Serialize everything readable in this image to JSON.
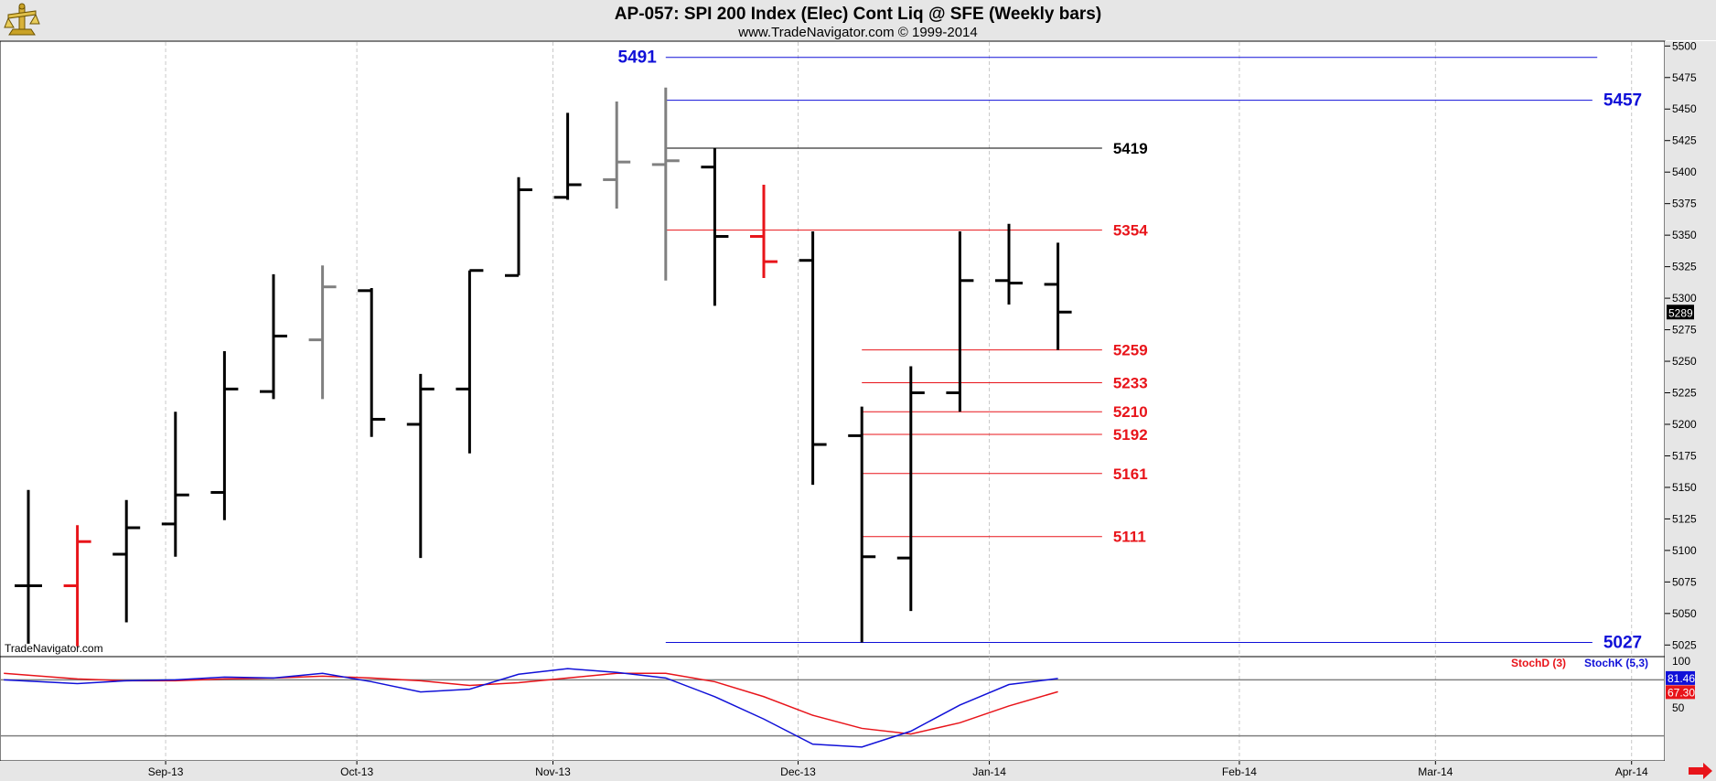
{
  "header": {
    "title": "AP-057:  SPI 200 Index (Elec) Cont Liq @ SFE  (Weekly bars)",
    "subtitle": "www.TradeNavigator.com © 1999-2014",
    "watermark": "TradeNavigator.com",
    "logo_icon": "trade-navigator-logo-icon"
  },
  "colors": {
    "black": "#000000",
    "red": "#e8141a",
    "gray": "#808080",
    "blue": "#1010d8",
    "grid": "#c8c8c8",
    "last_price_bg": "#000000",
    "stoch_d_bg": "#e8141a",
    "stoch_k_bg": "#1010d8"
  },
  "chart_data": {
    "type": "ohlc",
    "y_ticks": [
      5025,
      5050,
      5075,
      5100,
      5125,
      5150,
      5175,
      5200,
      5225,
      5250,
      5275,
      5300,
      5325,
      5350,
      5375,
      5400,
      5425,
      5450,
      5475,
      5500
    ],
    "y_tick_labels": [
      "5025",
      "5050",
      "5075",
      "5100",
      "5125",
      "5150",
      "5175",
      "5200",
      "5225",
      "5250",
      "5275",
      "5300",
      "5325",
      "5350",
      "5375",
      "5400",
      "5425",
      "5450",
      "5475",
      "5500"
    ],
    "ylim": [
      5022,
      5505
    ],
    "last_price": "5289",
    "last_price_value": 5289,
    "x_labels": [
      {
        "label": "Sep-13",
        "week": 2.8
      },
      {
        "label": "Oct-13",
        "week": 6.7
      },
      {
        "label": "Nov-13",
        "week": 10.7
      },
      {
        "label": "Dec-13",
        "week": 15.7
      },
      {
        "label": "Jan-14",
        "week": 19.6
      },
      {
        "label": "Feb-14",
        "week": 24.7
      },
      {
        "label": "Mar-14",
        "week": 28.7
      },
      {
        "label": "Apr-14",
        "week": 32.7
      }
    ],
    "bars": [
      {
        "week": 0,
        "open": 5072,
        "high": 5148,
        "low": 5026,
        "close": 5072,
        "color": "black"
      },
      {
        "week": 1,
        "open": 5072,
        "high": 5120,
        "low": 5024,
        "close": 5107,
        "color": "red"
      },
      {
        "week": 2,
        "open": 5097,
        "high": 5140,
        "low": 5043,
        "close": 5118,
        "color": "black"
      },
      {
        "week": 3,
        "open": 5121,
        "high": 5210,
        "low": 5095,
        "close": 5144,
        "color": "black"
      },
      {
        "week": 4,
        "open": 5146,
        "high": 5258,
        "low": 5124,
        "close": 5228,
        "color": "black"
      },
      {
        "week": 5,
        "open": 5226,
        "high": 5319,
        "low": 5220,
        "close": 5270,
        "color": "black"
      },
      {
        "week": 6,
        "open": 5267,
        "high": 5326,
        "low": 5220,
        "close": 5309,
        "color": "gray"
      },
      {
        "week": 7,
        "open": 5306,
        "high": 5308,
        "low": 5190,
        "close": 5204,
        "color": "black"
      },
      {
        "week": 8,
        "open": 5200,
        "high": 5240,
        "low": 5094,
        "close": 5228,
        "color": "black"
      },
      {
        "week": 9,
        "open": 5228,
        "high": 5322,
        "low": 5177,
        "close": 5322,
        "color": "black"
      },
      {
        "week": 10,
        "open": 5318,
        "high": 5396,
        "low": 5318,
        "close": 5386,
        "color": "black"
      },
      {
        "week": 11,
        "open": 5380,
        "high": 5447,
        "low": 5378,
        "close": 5390,
        "color": "black"
      },
      {
        "week": 12,
        "open": 5394,
        "high": 5456,
        "low": 5371,
        "close": 5408,
        "color": "gray"
      },
      {
        "week": 13,
        "open": 5406,
        "high": 5467,
        "low": 5314,
        "close": 5409,
        "color": "gray"
      },
      {
        "week": 14,
        "open": 5404,
        "high": 5419,
        "low": 5294,
        "close": 5349,
        "color": "black"
      },
      {
        "week": 15,
        "open": 5349,
        "high": 5390,
        "low": 5316,
        "close": 5329,
        "color": "red"
      },
      {
        "week": 16,
        "open": 5330,
        "high": 5353,
        "low": 5152,
        "close": 5184,
        "color": "black"
      },
      {
        "week": 17,
        "open": 5191,
        "high": 5214,
        "low": 5027,
        "close": 5095,
        "color": "black"
      },
      {
        "week": 18,
        "open": 5094,
        "high": 5246,
        "low": 5052,
        "close": 5225,
        "color": "black"
      },
      {
        "week": 19,
        "open": 5225,
        "high": 5353,
        "low": 5210,
        "close": 5314,
        "color": "black"
      },
      {
        "week": 20,
        "open": 5314,
        "high": 5359,
        "low": 5295,
        "close": 5312,
        "color": "black"
      },
      {
        "week": 21,
        "open": 5311,
        "high": 5344,
        "low": 5259,
        "close": 5289,
        "color": "black"
      }
    ],
    "levels": [
      {
        "value": 5491,
        "label": "5491",
        "color": "blue",
        "x_start": 13.0,
        "x_end": 32.0,
        "label_side": "left",
        "big": true
      },
      {
        "value": 5457,
        "label": "5457",
        "color": "blue",
        "x_start": 13.0,
        "x_end": 31.9,
        "label_side": "right",
        "big": true
      },
      {
        "value": 5419,
        "label": "5419",
        "color": "black",
        "x_start": 13.0,
        "x_end": 21.9,
        "label_side": "right",
        "big": false
      },
      {
        "value": 5354,
        "label": "5354",
        "color": "red",
        "x_start": 13.0,
        "x_end": 21.9,
        "label_side": "right",
        "big": false
      },
      {
        "value": 5259,
        "label": "5259",
        "color": "red",
        "x_start": 17.0,
        "x_end": 21.9,
        "label_side": "right",
        "big": false
      },
      {
        "value": 5233,
        "label": "5233",
        "color": "red",
        "x_start": 17.0,
        "x_end": 21.9,
        "label_side": "right",
        "big": false
      },
      {
        "value": 5210,
        "label": "5210",
        "color": "red",
        "x_start": 17.0,
        "x_end": 21.9,
        "label_side": "right",
        "big": false
      },
      {
        "value": 5192,
        "label": "5192",
        "color": "red",
        "x_start": 17.0,
        "x_end": 21.9,
        "label_side": "right",
        "big": false
      },
      {
        "value": 5161,
        "label": "5161",
        "color": "red",
        "x_start": 17.0,
        "x_end": 21.9,
        "label_side": "right",
        "big": false
      },
      {
        "value": 5111,
        "label": "5111",
        "color": "red",
        "x_start": 17.0,
        "x_end": 21.9,
        "label_side": "right",
        "big": false
      },
      {
        "value": 5027,
        "label": "5027",
        "color": "blue",
        "x_start": 13.0,
        "x_end": 31.9,
        "label_side": "right",
        "big": true
      }
    ],
    "stochastic": {
      "ylim": [
        0,
        100
      ],
      "y_ticks": [
        100,
        50
      ],
      "y_tick_labels": [
        "100",
        "50"
      ],
      "ref_levels": [
        80,
        20
      ],
      "stoch_d_label": "StochD (3)",
      "stoch_k_label": "StochK (5,3)",
      "stoch_d_last": "67.30",
      "stoch_k_last": "81.46",
      "stoch_d_last_value": 67.3,
      "stoch_k_last_value": 81.46,
      "x": [
        -0.5,
        1,
        2,
        3,
        4,
        5,
        6,
        7,
        8,
        9,
        10,
        11,
        12,
        13,
        14,
        15,
        16,
        17,
        18,
        19,
        20,
        21
      ],
      "stoch_d": [
        87,
        81,
        79,
        79,
        81,
        82,
        84,
        82,
        79,
        74,
        77,
        82,
        87,
        87,
        78,
        62,
        42,
        28,
        22,
        34,
        52,
        67.3
      ],
      "stoch_k": [
        80,
        76,
        79,
        80,
        83,
        82,
        87,
        78,
        67,
        70,
        86,
        92,
        88,
        82,
        62,
        38,
        11,
        8,
        25,
        53,
        75,
        81.46
      ]
    }
  }
}
